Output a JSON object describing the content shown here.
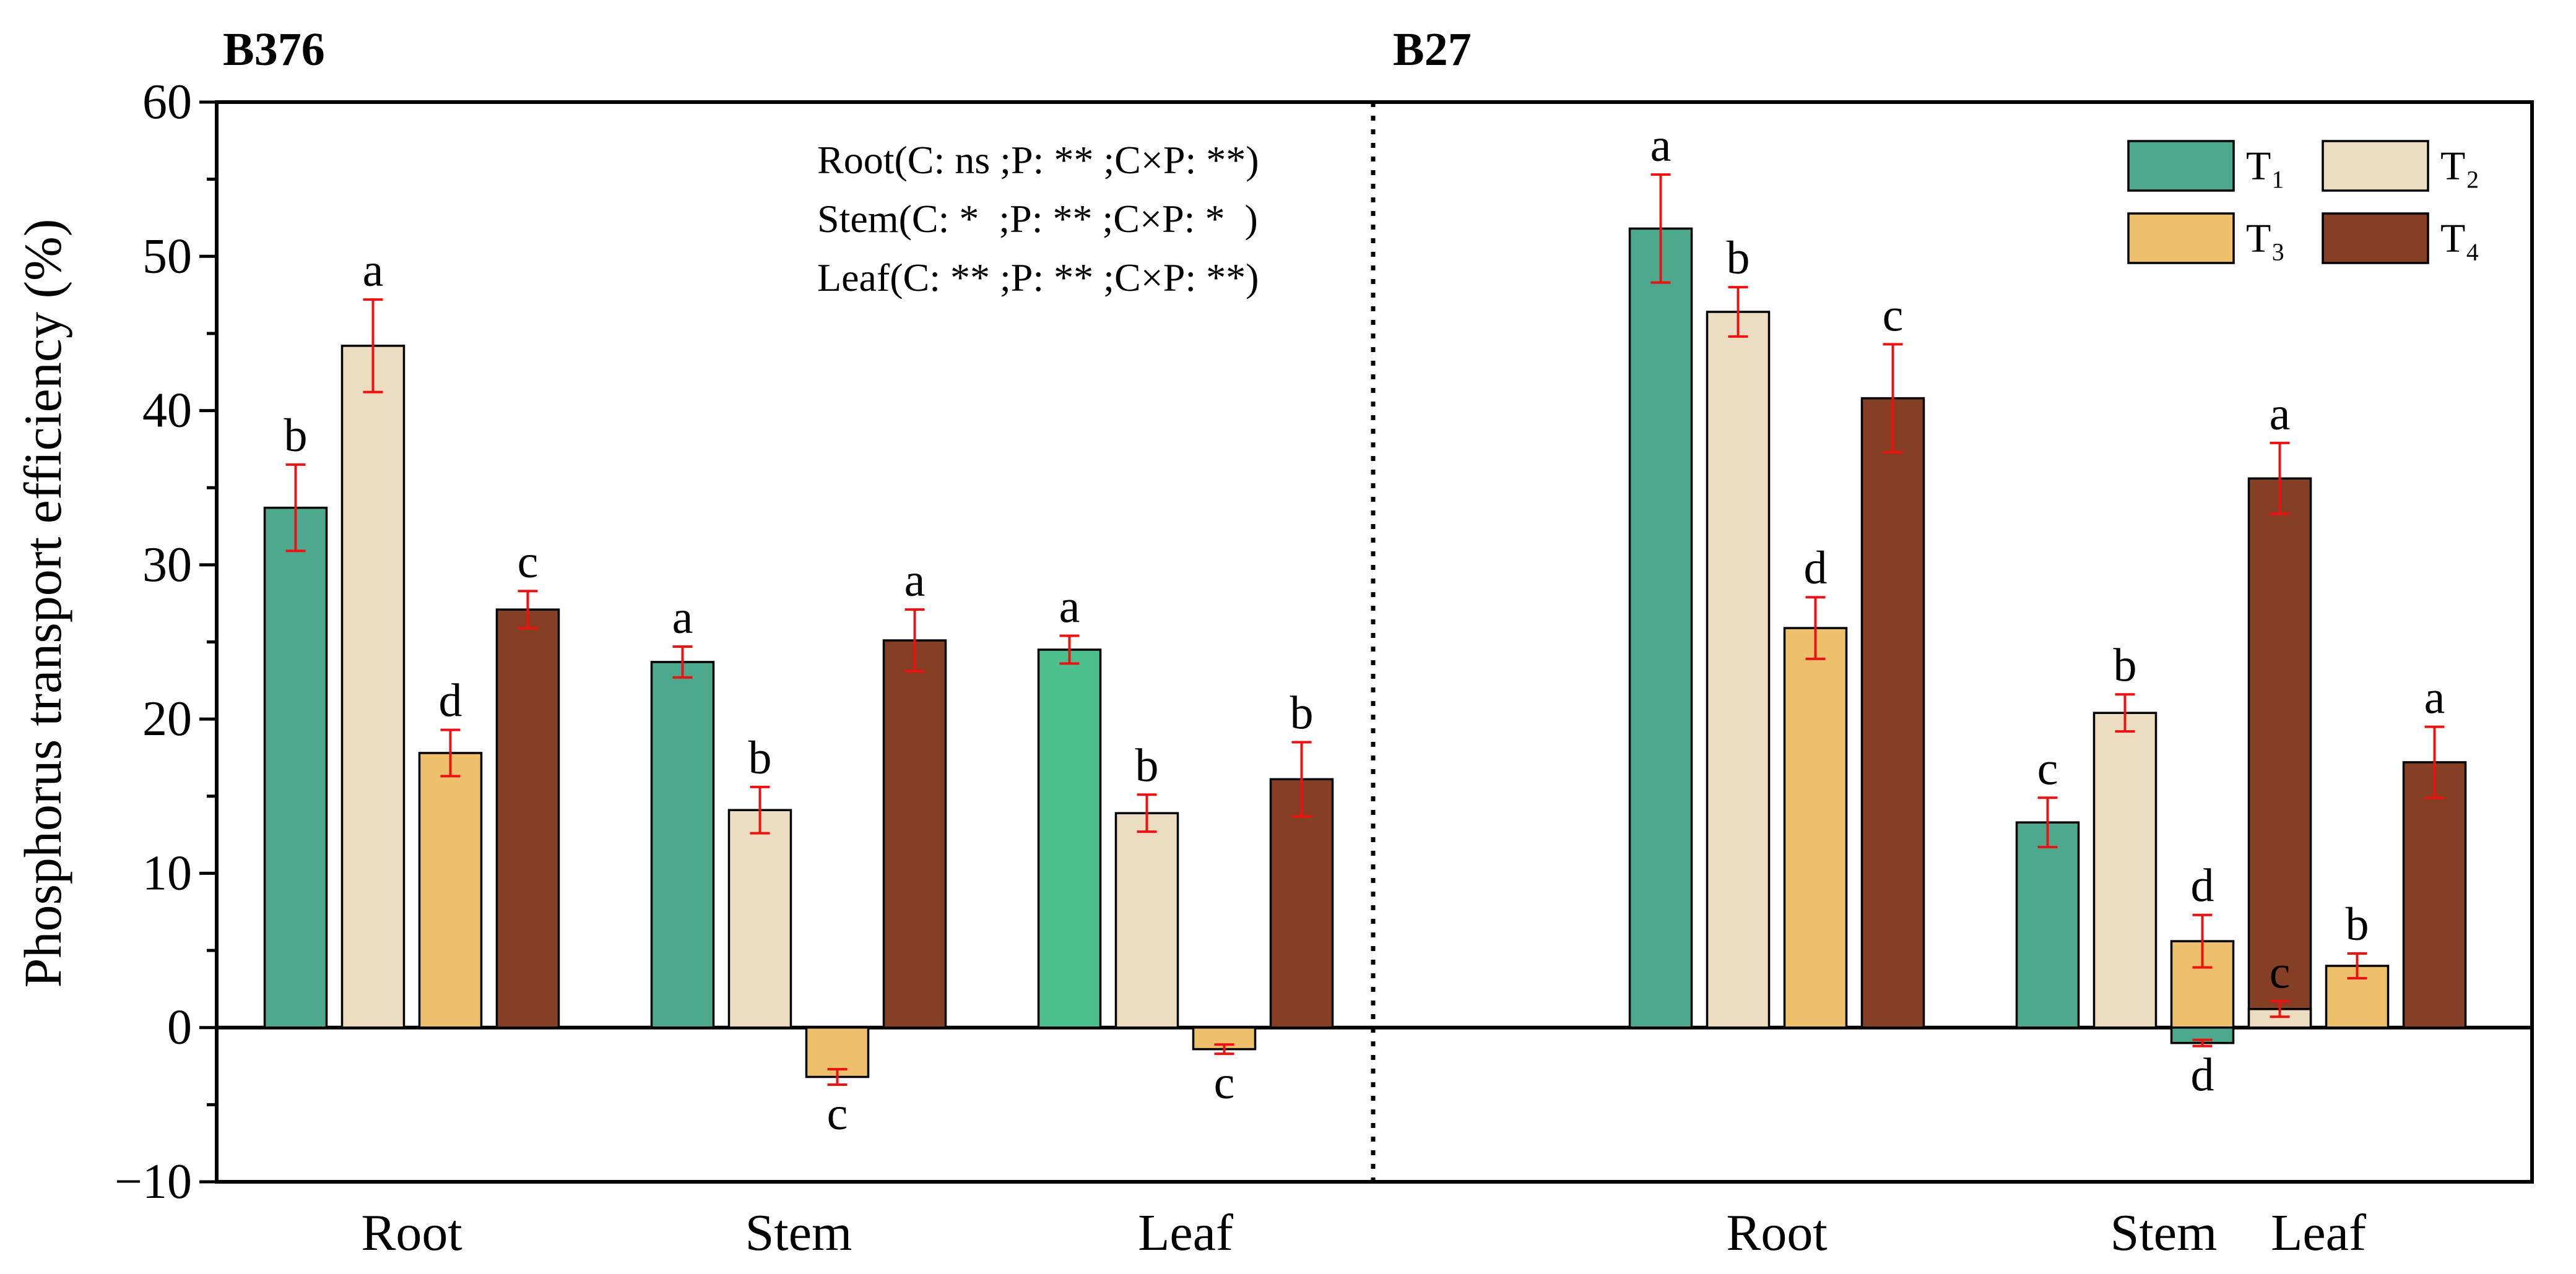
{
  "chart_data": {
    "type": "bar",
    "ylabel": "Phosphorus transport efficiency (%)",
    "xlabel": "",
    "ylim": [
      -10,
      60
    ],
    "yticks": [
      -10,
      0,
      10,
      20,
      30,
      40,
      50,
      60
    ],
    "panels": [
      {
        "label": "B376",
        "categories": [
          "Root",
          "Stem",
          "Leaf"
        ],
        "series": [
          {
            "name": "T₁",
            "values": [
              33.7,
              23.7,
              24.5
            ],
            "errors": [
              2.8,
              1.0,
              0.9
            ],
            "letters": [
              "b",
              "a",
              "a"
            ]
          },
          {
            "name": "T₂",
            "values": [
              44.2,
              14.1,
              13.9
            ],
            "errors": [
              3.0,
              1.5,
              1.2
            ],
            "letters": [
              "a",
              "b",
              "b"
            ]
          },
          {
            "name": "T₃",
            "values": [
              17.8,
              -3.2,
              -1.4
            ],
            "errors": [
              1.5,
              0.5,
              0.3
            ],
            "letters": [
              "d",
              "c",
              "c"
            ]
          },
          {
            "name": "T₄",
            "values": [
              27.1,
              25.1,
              16.1
            ],
            "errors": [
              1.2,
              2.0,
              2.4
            ],
            "letters": [
              "c",
              "a",
              "b"
            ]
          }
        ]
      },
      {
        "label": "B27",
        "categories": [
          "Root",
          "Stem",
          "Leaf"
        ],
        "series": [
          {
            "name": "T₁",
            "values": [
              51.8,
              13.3,
              -1.0
            ],
            "errors": [
              3.5,
              1.6,
              0.2
            ],
            "letters": [
              "a",
              "c",
              "d"
            ]
          },
          {
            "name": "T₂",
            "values": [
              46.4,
              20.4,
              1.2
            ],
            "errors": [
              1.6,
              1.2,
              0.5
            ],
            "letters": [
              "b",
              "b",
              "c"
            ]
          },
          {
            "name": "T₃",
            "values": [
              25.9,
              5.6,
              4.0
            ],
            "errors": [
              2.0,
              1.7,
              0.8
            ],
            "letters": [
              "d",
              "d",
              "b"
            ]
          },
          {
            "name": "T₄",
            "values": [
              40.8,
              35.6,
              17.2
            ],
            "errors": [
              3.5,
              2.3,
              2.3
            ],
            "letters": [
              "c",
              "a",
              "a"
            ]
          }
        ]
      }
    ],
    "annotations": [
      "Root(C: ns ;P: ** ;C×P: **)",
      "Stem(C: *  ;P: ** ;C×P: *  )",
      "Leaf(C: ** ;P: ** ;C×P: **)"
    ],
    "legend": {
      "position": "top-right",
      "entries": [
        {
          "name": "T₁",
          "color": "#4da98e"
        },
        {
          "name": "T₂",
          "color": "#ecdcc0"
        },
        {
          "name": "T₃",
          "color": "#eec06b"
        },
        {
          "name": "T₄",
          "color": "#853f25"
        }
      ]
    },
    "colors": {
      "T1": "#4da98e",
      "T1_leaf_b376": "#4dbf8e",
      "T2": "#ecdcc0",
      "T3": "#eec06b",
      "T4": "#853f25",
      "error": "#ee1111"
    }
  }
}
